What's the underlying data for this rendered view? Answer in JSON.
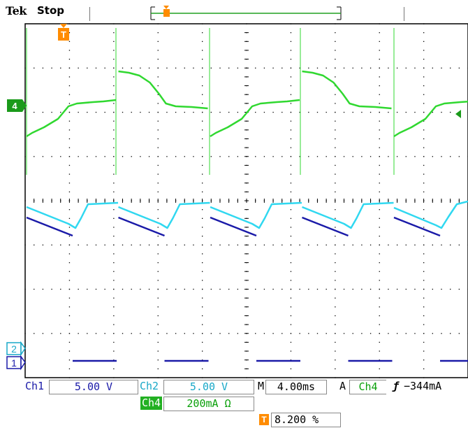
{
  "header": {
    "brand": "Tek",
    "state": "Stop"
  },
  "markers": {
    "trigger_pos": "T",
    "ch4": "4",
    "ch2": "2",
    "ch1": "1"
  },
  "status": {
    "ch1_label": "Ch1",
    "ch1_scale": "5.00 V",
    "ch2_label": "Ch2",
    "ch2_scale": "5.00 V",
    "ch4_label": "Ch4",
    "ch4_scale": "200mA Ω",
    "timebase_label": "M",
    "timebase": "4.00ms",
    "trigger_mode": "A",
    "trigger_source": "Ch4",
    "trigger_slope": "ƒ",
    "trigger_level": "−344mA",
    "trigger_pos_label": "T",
    "trigger_pos_value": "8.200 %"
  },
  "colors": {
    "ch1": "#1a1aa8",
    "ch2": "#30d8f0",
    "ch4": "#30d830",
    "trigger": "#ff8c00",
    "grid": "#000000"
  }
}
